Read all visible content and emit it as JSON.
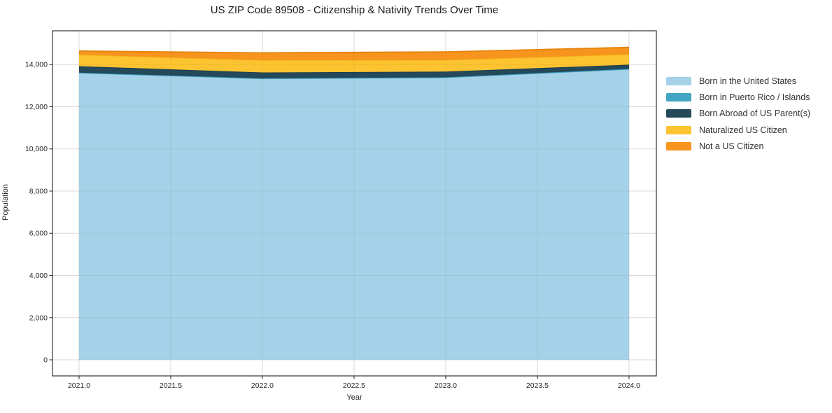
{
  "title": "US ZIP Code 89508 - Citizenship & Nativity Trends Over Time",
  "chart_data": {
    "type": "area",
    "stacked": true,
    "title": "US ZIP Code 89508 - Citizenship & Nativity Trends Over Time",
    "xlabel": "Year",
    "ylabel": "Population",
    "x": [
      2021,
      2022,
      2023,
      2024
    ],
    "series": [
      {
        "name": "Born in the United States",
        "color": "#a5d2e8",
        "line_color": "#8fc6e1",
        "values": [
          13600,
          13330,
          13380,
          13770
        ]
      },
      {
        "name": "Born in Puerto Rico / Islands",
        "color": "#41a6c3",
        "line_color": "#3497b6",
        "values": [
          15,
          15,
          15,
          25
        ]
      },
      {
        "name": "Born Abroad of US Parent(s)",
        "color": "#24495a",
        "line_color": "#1c3c4b",
        "values": [
          310,
          280,
          270,
          200
        ]
      },
      {
        "name": "Naturalized US Citizen",
        "color": "#fdc431",
        "line_color": "#f2b418",
        "values": [
          545,
          580,
          550,
          490
        ]
      },
      {
        "name": "Not a US Citizen",
        "color": "#f7941e",
        "line_color": "#e5830e",
        "values": [
          170,
          350,
          385,
          330
        ]
      }
    ],
    "totals": [
      14640,
      14555,
      14600,
      14815
    ],
    "xticks": [
      2021.0,
      2021.5,
      2022.0,
      2022.5,
      2023.0,
      2023.5,
      2024.0
    ],
    "xtick_labels": [
      "2021.0",
      "2021.5",
      "2022.0",
      "2022.5",
      "2023.0",
      "2023.5",
      "2024.0"
    ],
    "yticks": [
      0,
      2000,
      4000,
      6000,
      8000,
      10000,
      12000,
      14000
    ],
    "ytick_labels": [
      "0",
      "2,000",
      "4,000",
      "6,000",
      "8,000",
      "10,000",
      "12,000",
      "14,000"
    ],
    "xlim": [
      2020.855,
      2024.149
    ],
    "ylim": [
      -763,
      15600
    ],
    "grid": true,
    "grid_color": "#e4e4e4",
    "spine_color": "#333333",
    "legend_position": "right"
  }
}
